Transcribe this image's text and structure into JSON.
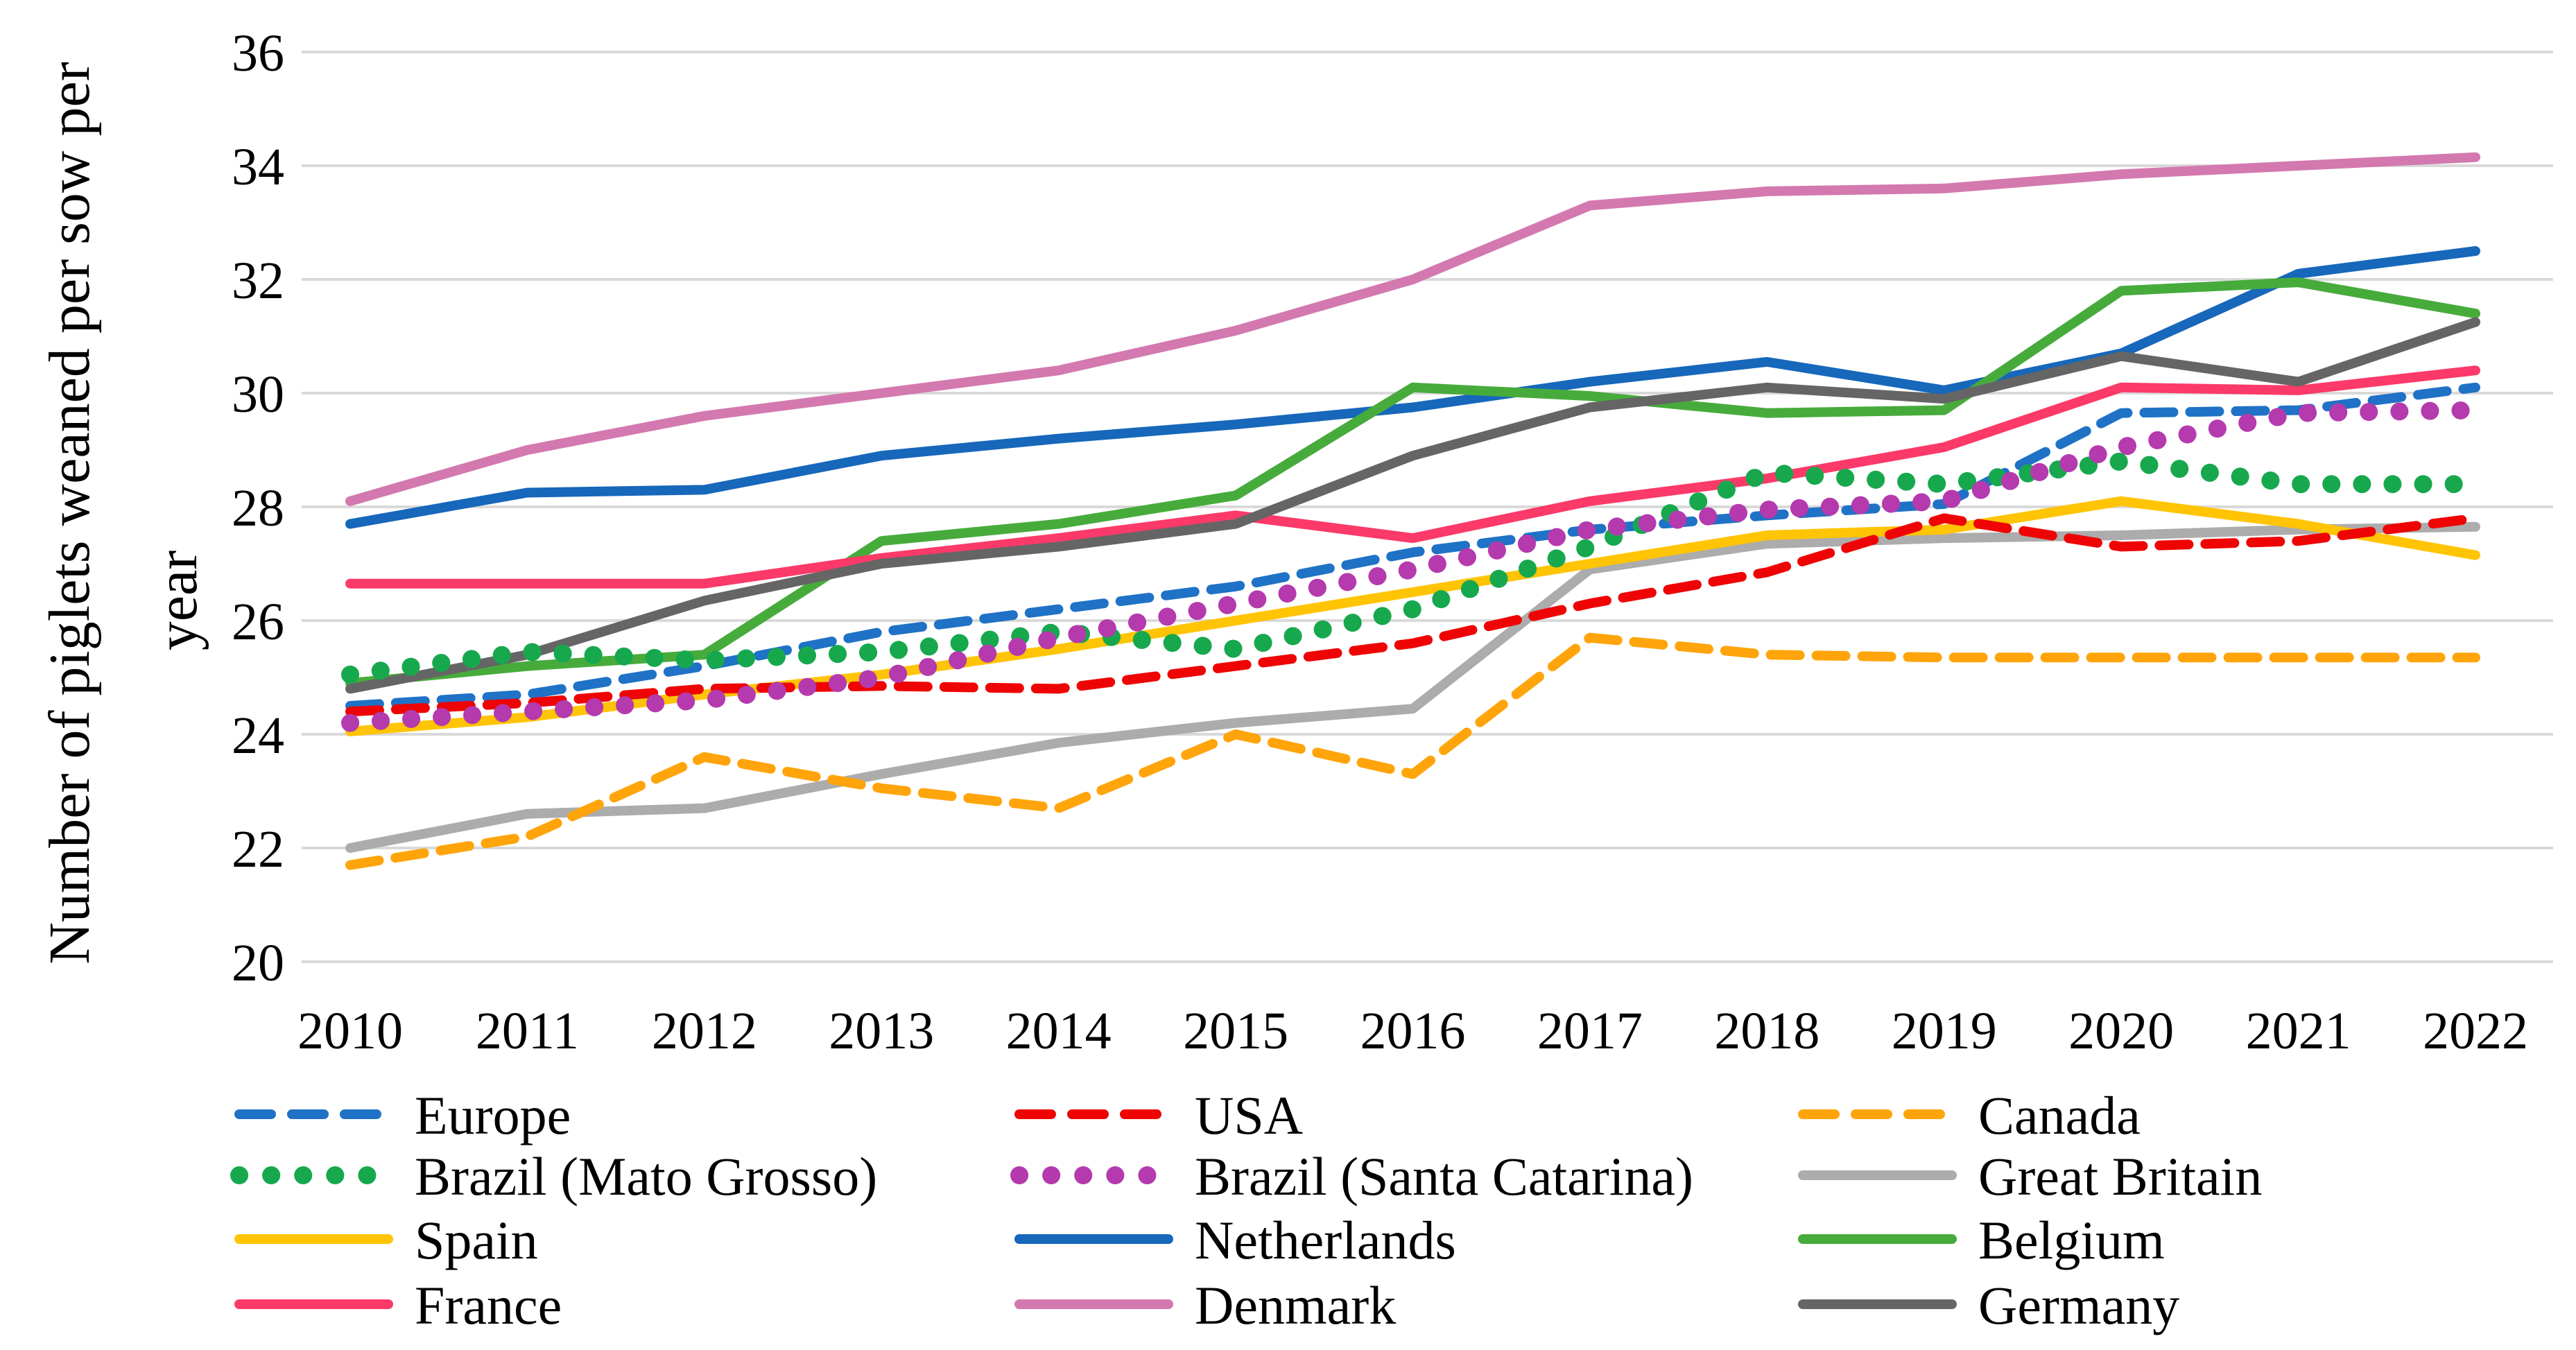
{
  "figure_type": "scientific line chart",
  "background_color": "#FFFFFF",
  "gridline_color": "#D9D9D9",
  "text_color": "#000000",
  "chart_data": {
    "type": "line",
    "title": "",
    "xlabel": "",
    "ylabel": "Number of piglets weaned per sow per year",
    "ylabel_lines": [
      "Number of piglets weaned per sow per",
      "year"
    ],
    "x": [
      2010,
      2011,
      2012,
      2013,
      2014,
      2015,
      2016,
      2017,
      2018,
      2019,
      2020,
      2021,
      2022
    ],
    "xtick_labels": [
      "2010",
      "2011",
      "2012",
      "2013",
      "2014",
      "2015",
      "2016",
      "2017",
      "2018",
      "2019",
      "2020",
      "2021",
      "2022"
    ],
    "ylim": [
      20,
      36
    ],
    "yticks": [
      20,
      22,
      24,
      26,
      28,
      30,
      32,
      34,
      36
    ],
    "grid": "horizontal",
    "legend_position": "bottom",
    "legend_columns": 3,
    "series": [
      {
        "name": "Europe",
        "color": "#1F72C6",
        "style": "dashed",
        "values": [
          24.5,
          24.7,
          25.2,
          25.8,
          26.2,
          26.6,
          27.2,
          27.6,
          27.85,
          28.05,
          29.65,
          29.7,
          30.1
        ]
      },
      {
        "name": "USA",
        "color": "#EE0404",
        "style": "dashed",
        "values": [
          24.4,
          24.55,
          24.8,
          24.85,
          24.8,
          25.2,
          25.6,
          26.3,
          26.85,
          27.8,
          27.3,
          27.4,
          27.8
        ]
      },
      {
        "name": "Canada",
        "color": "#FFA40A",
        "style": "dashed",
        "values": [
          21.7,
          22.2,
          23.6,
          23.05,
          22.7,
          24.0,
          23.3,
          25.7,
          25.4,
          25.35,
          25.35,
          25.35,
          25.35
        ]
      },
      {
        "name": "Brazil (Mato Grosso)",
        "color": "#17A84E",
        "style": "dotted",
        "values": [
          25.05,
          25.45,
          25.3,
          25.45,
          25.8,
          25.5,
          26.2,
          27.3,
          28.6,
          28.4,
          28.8,
          28.4,
          28.4
        ]
      },
      {
        "name": "Brazil (Santa Catarina)",
        "color": "#B43AAE",
        "style": "dotted",
        "values": [
          24.2,
          24.4,
          24.6,
          25.0,
          25.7,
          26.3,
          26.9,
          27.6,
          27.95,
          28.1,
          29.05,
          29.65,
          29.7
        ]
      },
      {
        "name": "Great Britain",
        "color": "#ACACAC",
        "style": "solid",
        "values": [
          22.0,
          22.6,
          22.7,
          23.3,
          23.85,
          24.2,
          24.45,
          26.9,
          27.35,
          27.45,
          27.5,
          27.6,
          27.65
        ]
      },
      {
        "name": "Spain",
        "color": "#FFC403",
        "style": "solid",
        "values": [
          24.05,
          24.3,
          24.7,
          25.05,
          25.5,
          26.0,
          26.5,
          27.0,
          27.5,
          27.6,
          28.1,
          27.7,
          27.15
        ]
      },
      {
        "name": "Netherlands",
        "color": "#1767BB",
        "style": "solid",
        "values": [
          27.7,
          28.25,
          28.3,
          28.9,
          29.2,
          29.45,
          29.75,
          30.2,
          30.55,
          30.05,
          30.7,
          32.1,
          32.5
        ]
      },
      {
        "name": "Belgium",
        "color": "#47AB3C",
        "style": "solid",
        "values": [
          24.9,
          25.2,
          25.4,
          27.4,
          27.7,
          28.2,
          30.1,
          29.95,
          29.65,
          29.7,
          31.8,
          31.95,
          31.4
        ]
      },
      {
        "name": "France",
        "color": "#FB3A69",
        "style": "solid",
        "values": [
          26.65,
          26.65,
          26.65,
          27.1,
          27.45,
          27.85,
          27.45,
          28.1,
          28.5,
          29.05,
          30.1,
          30.05,
          30.4
        ]
      },
      {
        "name": "Denmark",
        "color": "#D379AF",
        "style": "solid",
        "values": [
          28.1,
          29.0,
          29.6,
          30.0,
          30.4,
          31.1,
          32.0,
          33.3,
          33.55,
          33.6,
          33.85,
          34.0,
          34.15
        ]
      },
      {
        "name": "Germany",
        "color": "#656565",
        "style": "solid",
        "values": [
          24.8,
          25.4,
          26.35,
          27.0,
          27.3,
          27.7,
          28.9,
          29.75,
          30.1,
          29.9,
          30.65,
          30.2,
          31.25
        ]
      }
    ]
  }
}
